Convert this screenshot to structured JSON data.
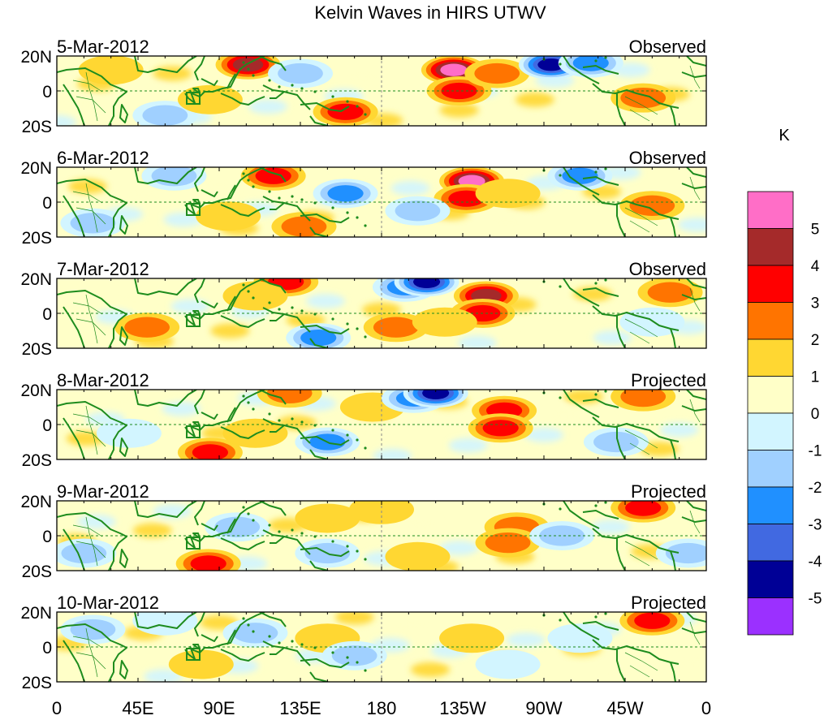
{
  "chart_data": {
    "type": "heatmap",
    "title": "Kelvin Waves in HIRS UTWV",
    "colorbar": {
      "unit_label": "K",
      "levels": [
        "5",
        "4",
        "3",
        "2",
        "1",
        "0",
        "-1",
        "-2",
        "-3",
        "-4",
        "-5"
      ],
      "colors": [
        "#ff6ec7",
        "#a52a2a",
        "#ff0000",
        "#ff7400",
        "#ffd732",
        "#ffffc8",
        "#d2f5ff",
        "#a0d0ff",
        "#2090ff",
        "#4169e1",
        "#000096",
        "#9b30ff"
      ]
    },
    "x_ticks": [
      "0",
      "45E",
      "90E",
      "135E",
      "180",
      "135W",
      "90W",
      "45W",
      "0"
    ],
    "y_ticks": [
      "20N",
      "0",
      "20S"
    ],
    "panels": [
      {
        "date": "5-Mar-2012",
        "status": "Observed",
        "blobs": [
          {
            "lon": 106,
            "lat": 15,
            "v": 4
          },
          {
            "lon": 160,
            "lat": -12,
            "v": 3
          },
          {
            "lon": 220,
            "lat": 12,
            "v": 5
          },
          {
            "lon": 223,
            "lat": 0,
            "v": 3
          },
          {
            "lon": 244,
            "lat": 10,
            "v": 2
          },
          {
            "lon": 274,
            "lat": 15,
            "v": -5
          },
          {
            "lon": 296,
            "lat": 16,
            "v": -3
          },
          {
            "lon": 325,
            "lat": -4,
            "v": 2
          },
          {
            "lon": 135,
            "lat": 10,
            "v": -2
          },
          {
            "lon": 60,
            "lat": -14,
            "v": -2
          },
          {
            "lon": 30,
            "lat": 12,
            "v": 1
          },
          {
            "lon": 85,
            "lat": -5,
            "v": 1
          }
        ]
      },
      {
        "date": "6-Mar-2012",
        "status": "Observed",
        "blobs": [
          {
            "lon": 120,
            "lat": 15,
            "v": 3
          },
          {
            "lon": 230,
            "lat": 12,
            "v": 5
          },
          {
            "lon": 227,
            "lat": 2,
            "v": 3
          },
          {
            "lon": 250,
            "lat": 5,
            "v": 1
          },
          {
            "lon": 330,
            "lat": -2,
            "v": 2
          },
          {
            "lon": 137,
            "lat": -14,
            "v": 2
          },
          {
            "lon": 160,
            "lat": 5,
            "v": -3
          },
          {
            "lon": 200,
            "lat": -5,
            "v": -2
          },
          {
            "lon": 20,
            "lat": -12,
            "v": -2
          },
          {
            "lon": 65,
            "lat": 15,
            "v": -2
          },
          {
            "lon": 290,
            "lat": 15,
            "v": -3
          },
          {
            "lon": 95,
            "lat": -8,
            "v": 1
          }
        ]
      },
      {
        "date": "7-Mar-2012",
        "status": "Observed",
        "blobs": [
          {
            "lon": 127,
            "lat": 18,
            "v": 3
          },
          {
            "lon": 238,
            "lat": 10,
            "v": 4
          },
          {
            "lon": 236,
            "lat": 0,
            "v": 3
          },
          {
            "lon": 188,
            "lat": -8,
            "v": 2
          },
          {
            "lon": 215,
            "lat": -5,
            "v": 1
          },
          {
            "lon": 50,
            "lat": -8,
            "v": 2
          },
          {
            "lon": 110,
            "lat": 10,
            "v": 1
          },
          {
            "lon": 193,
            "lat": 15,
            "v": -3
          },
          {
            "lon": 205,
            "lat": 18,
            "v": -5
          },
          {
            "lon": 145,
            "lat": -14,
            "v": -3
          },
          {
            "lon": 330,
            "lat": -5,
            "v": -1
          },
          {
            "lon": 340,
            "lat": 12,
            "v": 2
          }
        ]
      },
      {
        "date": "8-Mar-2012",
        "status": "Projected",
        "blobs": [
          {
            "lon": 85,
            "lat": -16,
            "v": 3
          },
          {
            "lon": 129,
            "lat": 18,
            "v": 2
          },
          {
            "lon": 248,
            "lat": 8,
            "v": 3
          },
          {
            "lon": 246,
            "lat": -2,
            "v": 3
          },
          {
            "lon": 175,
            "lat": 10,
            "v": 1
          },
          {
            "lon": 325,
            "lat": 16,
            "v": 2
          },
          {
            "lon": 198,
            "lat": 15,
            "v": -3
          },
          {
            "lon": 210,
            "lat": 18,
            "v": -5
          },
          {
            "lon": 150,
            "lat": -10,
            "v": -3
          },
          {
            "lon": 40,
            "lat": -5,
            "v": -1
          },
          {
            "lon": 310,
            "lat": -10,
            "v": -2
          },
          {
            "lon": 110,
            "lat": -5,
            "v": 1
          }
        ]
      },
      {
        "date": "9-Mar-2012",
        "status": "Projected",
        "blobs": [
          {
            "lon": 84,
            "lat": -16,
            "v": 3
          },
          {
            "lon": 255,
            "lat": 5,
            "v": 2
          },
          {
            "lon": 250,
            "lat": -4,
            "v": 2
          },
          {
            "lon": 325,
            "lat": 16,
            "v": 3
          },
          {
            "lon": 150,
            "lat": 10,
            "v": 1
          },
          {
            "lon": 180,
            "lat": 15,
            "v": 1
          },
          {
            "lon": 15,
            "lat": -10,
            "v": -2
          },
          {
            "lon": 100,
            "lat": 5,
            "v": -2
          },
          {
            "lon": 150,
            "lat": -10,
            "v": -2
          },
          {
            "lon": 280,
            "lat": 0,
            "v": -2
          },
          {
            "lon": 350,
            "lat": -10,
            "v": -2
          },
          {
            "lon": 200,
            "lat": -12,
            "v": 1
          }
        ]
      },
      {
        "date": "10-Mar-2012",
        "status": "Projected",
        "blobs": [
          {
            "lon": 330,
            "lat": 15,
            "v": 3
          },
          {
            "lon": 150,
            "lat": 5,
            "v": 1
          },
          {
            "lon": 80,
            "lat": -10,
            "v": 1
          },
          {
            "lon": 230,
            "lat": 5,
            "v": 1
          },
          {
            "lon": 20,
            "lat": 10,
            "v": -2
          },
          {
            "lon": 110,
            "lat": 8,
            "v": -2
          },
          {
            "lon": 165,
            "lat": -5,
            "v": -2
          },
          {
            "lon": 250,
            "lat": -10,
            "v": -1
          },
          {
            "lon": 60,
            "lat": 15,
            "v": -1
          },
          {
            "lon": 290,
            "lat": 5,
            "v": -1
          }
        ]
      }
    ]
  }
}
